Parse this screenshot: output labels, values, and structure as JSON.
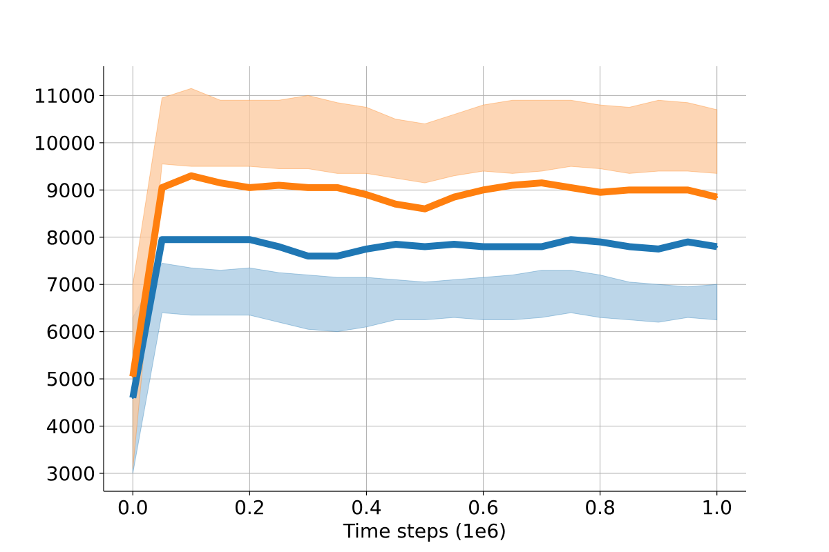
{
  "chart_data": {
    "type": "line",
    "title": "",
    "xlabel": "Time steps (1e6)",
    "ylabel": "",
    "xlim": [
      -0.05,
      1.05
    ],
    "ylim": [
      2620,
      11620
    ],
    "grid": true,
    "legend": "none",
    "x_ticks": [
      0.0,
      0.2,
      0.4,
      0.6,
      0.8,
      1.0
    ],
    "x_tick_labels": [
      "0.0",
      "0.2",
      "0.4",
      "0.6",
      "0.8",
      "1.0"
    ],
    "y_ticks": [
      3000,
      4000,
      5000,
      6000,
      7000,
      8000,
      9000,
      10000,
      11000
    ],
    "y_tick_labels": [
      "3000",
      "4000",
      "5000",
      "6000",
      "7000",
      "8000",
      "9000",
      "10000",
      "11000"
    ],
    "x": [
      0.0,
      0.05,
      0.1,
      0.15,
      0.2,
      0.25,
      0.3,
      0.35,
      0.4,
      0.45,
      0.5,
      0.55,
      0.6,
      0.65,
      0.7,
      0.75,
      0.8,
      0.85,
      0.9,
      0.95,
      1.0
    ],
    "series": [
      {
        "color": "#1f77b4",
        "band_color": "#a6c8e1",
        "mean": [
          4600,
          7950,
          7950,
          7950,
          7950,
          7800,
          7600,
          7600,
          7750,
          7850,
          7800,
          7850,
          7800,
          7800,
          7800,
          7950,
          7900,
          7800,
          7750,
          7900,
          7800
        ],
        "lower": [
          3000,
          6400,
          6350,
          6350,
          6350,
          6200,
          6050,
          6000,
          6100,
          6250,
          6250,
          6300,
          6250,
          6250,
          6300,
          6400,
          6300,
          6250,
          6200,
          6300,
          6250
        ],
        "upper": [
          6300,
          7450,
          7350,
          7300,
          7350,
          7250,
          7200,
          7150,
          7150,
          7100,
          7050,
          7100,
          7150,
          7200,
          7300,
          7300,
          7200,
          7050,
          7000,
          6950,
          7000
        ]
      },
      {
        "color": "#ff7f0e",
        "band_color": "#fcc89c",
        "mean": [
          5050,
          9050,
          9300,
          9150,
          9050,
          9100,
          9050,
          9050,
          8900,
          8700,
          8600,
          8850,
          9000,
          9100,
          9150,
          9050,
          8950,
          9000,
          9000,
          9000,
          8850
        ],
        "lower": [
          3100,
          9550,
          9500,
          9500,
          9500,
          9450,
          9450,
          9350,
          9350,
          9250,
          9150,
          9300,
          9400,
          9350,
          9400,
          9500,
          9450,
          9350,
          9400,
          9400,
          9350
        ],
        "upper": [
          7000,
          10950,
          11150,
          10900,
          10900,
          10900,
          11000,
          10850,
          10750,
          10500,
          10400,
          10600,
          10800,
          10900,
          10900,
          10900,
          10800,
          10750,
          10900,
          10850,
          10700
        ]
      }
    ]
  }
}
